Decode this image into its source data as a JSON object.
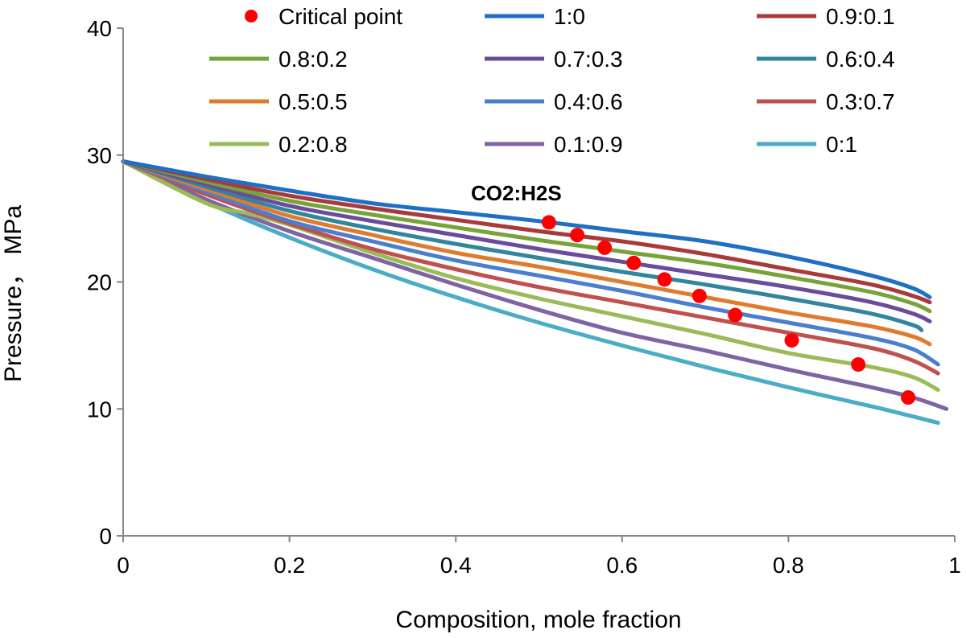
{
  "chart_data": {
    "type": "line",
    "title": "",
    "xlabel": "Composition, mole fraction",
    "ylabel": "Pressure， MPa",
    "xlim": [
      0,
      1
    ],
    "ylim": [
      0,
      40
    ],
    "xticks": [
      0,
      0.2,
      0.4,
      0.6,
      0.8,
      1
    ],
    "xtick_labels": [
      "0",
      "0.2",
      "0.4",
      "0.6",
      "0.8",
      "1"
    ],
    "yticks": [
      0,
      10,
      20,
      30,
      40
    ],
    "ytick_labels": [
      "0",
      "10",
      "20",
      "30",
      "40"
    ],
    "grid": false,
    "legend_position": "top",
    "annotation": "CO2:H2S",
    "series": [
      {
        "name": "1:0",
        "color": "#1f6fc5",
        "x": [
          0,
          0.1,
          0.2,
          0.3,
          0.4,
          0.5,
          0.6,
          0.7,
          0.8,
          0.9,
          0.95,
          0.97
        ],
        "y": [
          29.5,
          28.3,
          27.2,
          26.2,
          25.5,
          24.8,
          24.0,
          23.2,
          22.0,
          20.5,
          19.5,
          18.8
        ]
      },
      {
        "name": "0.9:0.1",
        "color": "#a83a3a",
        "x": [
          0,
          0.1,
          0.2,
          0.3,
          0.4,
          0.5,
          0.6,
          0.7,
          0.8,
          0.9,
          0.95,
          0.97
        ],
        "y": [
          29.5,
          28.1,
          26.8,
          25.8,
          24.9,
          24.0,
          23.2,
          22.2,
          21.0,
          19.8,
          18.9,
          18.4
        ]
      },
      {
        "name": "0.8:0.2",
        "color": "#77a33a",
        "x": [
          0,
          0.1,
          0.2,
          0.3,
          0.4,
          0.5,
          0.6,
          0.7,
          0.8,
          0.9,
          0.95,
          0.97
        ],
        "y": [
          29.5,
          27.9,
          26.4,
          25.3,
          24.3,
          23.3,
          22.4,
          21.5,
          20.4,
          19.2,
          18.3,
          17.7
        ]
      },
      {
        "name": "0.7:0.3",
        "color": "#6b4c9a",
        "x": [
          0,
          0.1,
          0.2,
          0.3,
          0.4,
          0.5,
          0.6,
          0.7,
          0.8,
          0.9,
          0.95,
          0.97
        ],
        "y": [
          29.5,
          27.7,
          26.0,
          24.8,
          23.7,
          22.6,
          21.6,
          20.6,
          19.6,
          18.4,
          17.5,
          16.9
        ]
      },
      {
        "name": "0.6:0.4",
        "color": "#31859c",
        "x": [
          0,
          0.1,
          0.2,
          0.3,
          0.4,
          0.5,
          0.6,
          0.7,
          0.8,
          0.9,
          0.95,
          0.96
        ],
        "y": [
          29.5,
          27.5,
          25.6,
          24.2,
          23.0,
          21.9,
          20.8,
          19.8,
          18.7,
          17.5,
          16.6,
          16.2
        ]
      },
      {
        "name": "0.5:0.5",
        "color": "#e07b2e",
        "x": [
          0,
          0.1,
          0.2,
          0.3,
          0.4,
          0.5,
          0.6,
          0.7,
          0.8,
          0.9,
          0.95,
          0.97
        ],
        "y": [
          29.5,
          27.3,
          25.2,
          23.7,
          22.3,
          21.2,
          20.0,
          18.8,
          17.6,
          16.5,
          15.7,
          15.1
        ]
      },
      {
        "name": "0.4:0.6",
        "color": "#4a7fcf",
        "x": [
          0,
          0.1,
          0.2,
          0.3,
          0.4,
          0.5,
          0.6,
          0.7,
          0.8,
          0.9,
          0.95,
          0.98
        ],
        "y": [
          29.5,
          27.1,
          24.8,
          23.2,
          21.7,
          20.5,
          19.3,
          18.0,
          16.8,
          15.6,
          14.7,
          13.5
        ]
      },
      {
        "name": "0.3:0.7",
        "color": "#c0504d",
        "x": [
          0,
          0.1,
          0.2,
          0.3,
          0.4,
          0.5,
          0.6,
          0.7,
          0.8,
          0.9,
          0.95,
          0.98
        ],
        "y": [
          29.5,
          26.9,
          24.6,
          22.6,
          21.0,
          19.6,
          18.4,
          17.2,
          16.0,
          14.8,
          13.8,
          12.8
        ]
      },
      {
        "name": "0.2:0.8",
        "color": "#9bbb59",
        "x": [
          0,
          0.1,
          0.15,
          0.2,
          0.3,
          0.4,
          0.5,
          0.6,
          0.7,
          0.8,
          0.9,
          0.95,
          0.98
        ],
        "y": [
          29.5,
          26.2,
          25.4,
          24.5,
          22.3,
          20.3,
          18.7,
          17.3,
          15.9,
          14.4,
          13.3,
          12.5,
          11.5
        ]
      },
      {
        "name": "0.1:0.9",
        "color": "#8064a2",
        "x": [
          0,
          0.1,
          0.2,
          0.3,
          0.4,
          0.5,
          0.6,
          0.7,
          0.8,
          0.9,
          0.95,
          0.99
        ],
        "y": [
          29.5,
          26.5,
          24.0,
          21.9,
          19.8,
          17.8,
          16.0,
          14.6,
          13.1,
          11.7,
          10.9,
          10.0
        ]
      },
      {
        "name": "0:1",
        "color": "#4bacc6",
        "x": [
          0,
          0.1,
          0.2,
          0.3,
          0.4,
          0.5,
          0.6,
          0.7,
          0.8,
          0.9,
          0.95,
          0.98
        ],
        "y": [
          29.5,
          26.3,
          23.5,
          21.0,
          18.8,
          16.8,
          15.0,
          13.3,
          11.7,
          10.2,
          9.4,
          8.9
        ]
      }
    ],
    "critical_points": {
      "name": "Critical point",
      "color": "#ff0000",
      "x": [
        0.512,
        0.546,
        0.579,
        0.614,
        0.651,
        0.693,
        0.736,
        0.804,
        0.884,
        0.944
      ],
      "y": [
        24.7,
        23.7,
        22.7,
        21.5,
        20.2,
        18.9,
        17.4,
        15.4,
        13.5,
        10.9
      ]
    }
  }
}
